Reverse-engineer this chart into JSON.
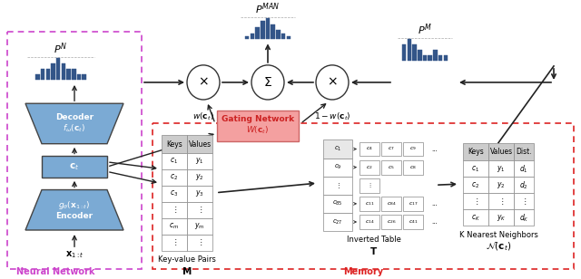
{
  "bg_color": "#ffffff",
  "nn_box_color": "#cc44cc",
  "memory_box_color": "#dd2222",
  "component_color": "#7baad4",
  "component_edge": "#444444",
  "gating_fill": "#f4a0a0",
  "gating_edge": "#cc6666",
  "gating_text": "#cc2222",
  "bar_color": "#335588",
  "table_header_fill": "#cccccc",
  "table_cell_fill": "#ffffff",
  "table_edge": "#888888",
  "arrow_color": "#222222",
  "pN_heights": [
    1,
    2,
    2,
    3,
    4,
    3,
    2,
    2,
    1,
    1
  ],
  "pMAN_heights": [
    1,
    2,
    4,
    6,
    7,
    5,
    3,
    2,
    1
  ],
  "pM_heights": [
    3,
    4,
    3,
    2,
    1,
    1,
    2,
    1,
    1
  ],
  "kv_rows": [
    [
      "$c_1$",
      "$y_1$"
    ],
    [
      "$c_2$",
      "$y_2$"
    ],
    [
      "$c_3$",
      "$y_3$"
    ],
    [
      "$\\vdots$",
      "$\\vdots$"
    ],
    [
      "$c_m$",
      "$y_m$"
    ],
    [
      "$\\vdots$",
      "$\\vdots$"
    ]
  ],
  "knn_rows": [
    [
      "$c_1$",
      "$y_1$",
      "$d_1$"
    ],
    [
      "$c_2$",
      "$y_2$",
      "$d_2$"
    ],
    [
      "$\\vdots$",
      "$\\vdots$",
      "$\\vdots$"
    ],
    [
      "$c_K$",
      "$y_K$",
      "$d_K$"
    ]
  ],
  "inv_keys": [
    "$c_1$",
    "$c_9$",
    "$\\vdots$",
    "$c_{85}$",
    "$c_{27}$"
  ],
  "inv_vals": [
    [
      "$c_4$",
      "$c_7$",
      "$c_9$",
      "..."
    ],
    [
      "$c_2$",
      "$c_5$",
      "$c_8$",
      ""
    ],
    [
      "$\\vdots$",
      "",
      "",
      ""
    ],
    [
      "$c_{11}$",
      "$c_{84}$",
      "$c_{17}$",
      "..."
    ],
    [
      "$c_{14}$",
      "$c_{26}$",
      "$c_{41}$",
      "..."
    ]
  ]
}
